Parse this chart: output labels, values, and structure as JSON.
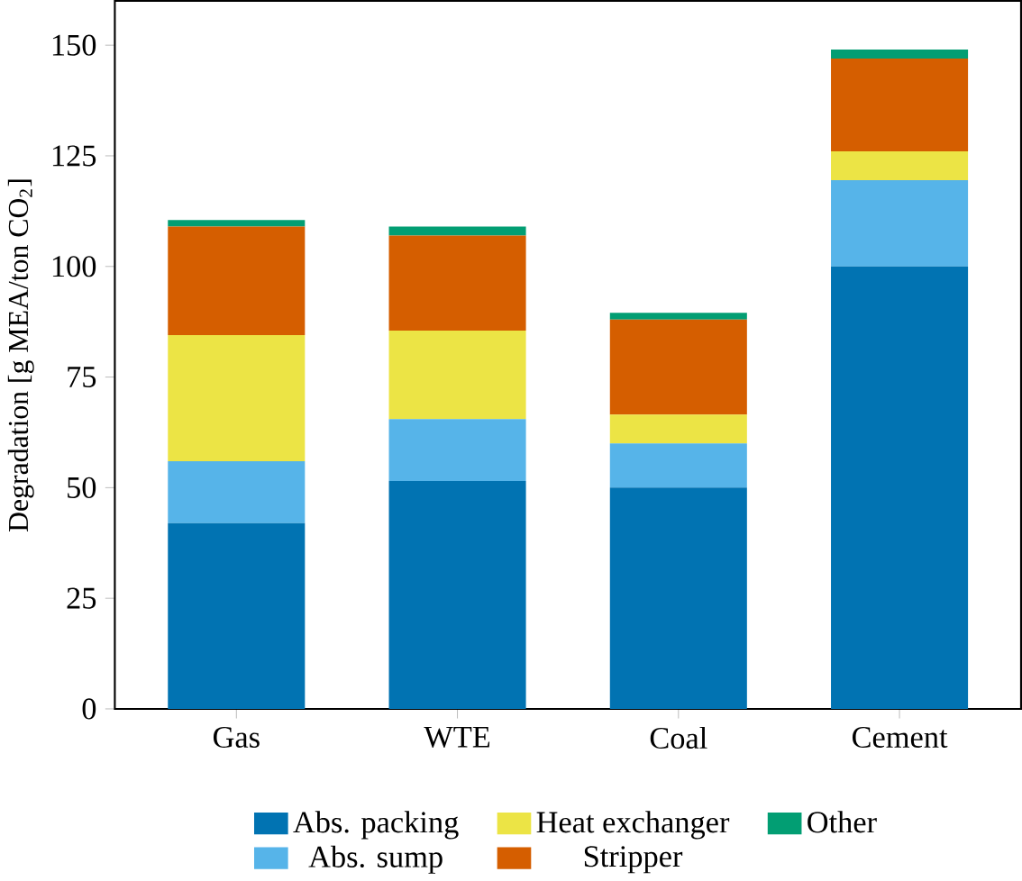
{
  "chart_data": {
    "type": "bar",
    "stacked": true,
    "ylabel": "Degradation [g MEA/ton CO$_{2}$]",
    "categories": [
      "Gas",
      "WTE",
      "Coal",
      "Cement"
    ],
    "series": [
      {
        "name": "Abs. packing",
        "color": "#0173b2",
        "values": [
          42,
          51.5,
          50,
          100
        ]
      },
      {
        "name": "Abs. sump",
        "color": "#56b4e9",
        "values": [
          14,
          14,
          10,
          19.5
        ]
      },
      {
        "name": "Heat exchanger",
        "color": "#ece445",
        "values": [
          28.5,
          20,
          6.5,
          6.5
        ]
      },
      {
        "name": "Stripper",
        "color": "#d55e00",
        "values": [
          24.5,
          21.5,
          21.5,
          21
        ]
      },
      {
        "name": "Other",
        "color": "#029e73",
        "values": [
          1.5,
          2,
          1.5,
          2
        ]
      }
    ],
    "ylim": [
      0,
      160
    ],
    "yticks": [
      0,
      25,
      50,
      75,
      100,
      125,
      150
    ],
    "grid": false,
    "legend": "bottom"
  }
}
